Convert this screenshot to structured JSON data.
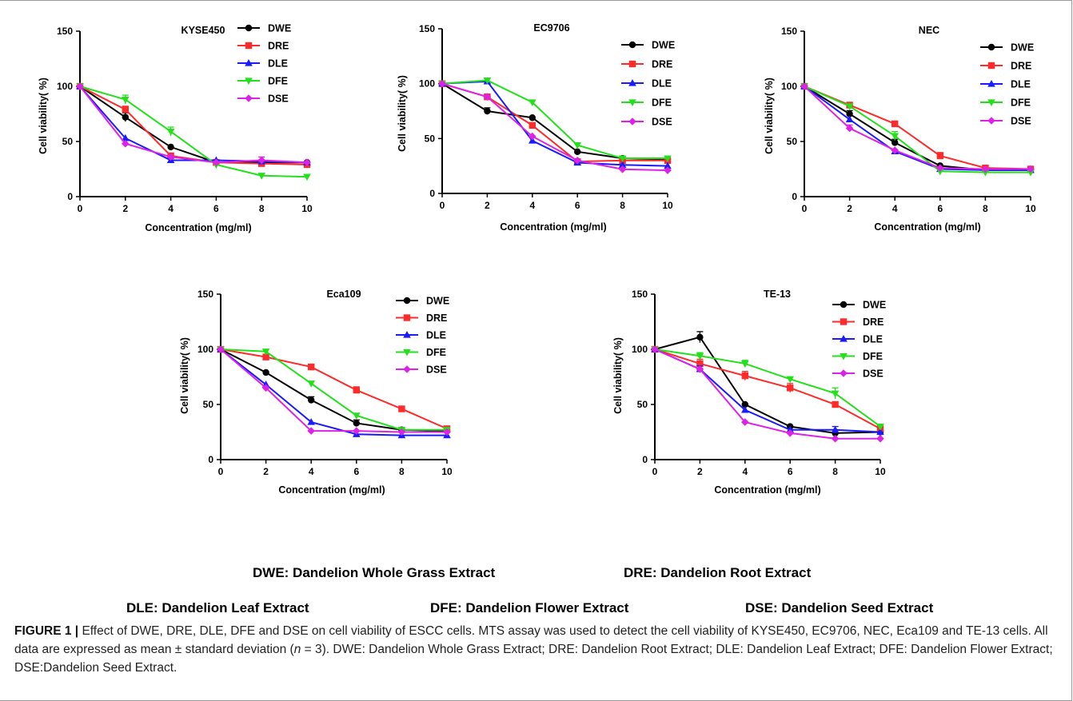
{
  "colors": {
    "DWE": "#000000",
    "DRE": "#ff2a2a",
    "DLE": "#1a1aff",
    "DFE": "#22e01a",
    "DSE": "#dd22e8"
  },
  "chart_data": [
    {
      "type": "line",
      "title": "KYSE450",
      "xlabel": "Concentration (mg/ml)",
      "ylabel": "Cell viability( %)",
      "x": [
        0,
        2,
        4,
        6,
        8,
        10
      ],
      "xlim": [
        0,
        10
      ],
      "ylim": [
        0,
        150
      ],
      "xticks": [
        "0",
        "2",
        "4",
        "6",
        "8",
        "10"
      ],
      "yticks": [
        "0",
        "50",
        "100",
        "150"
      ],
      "series": [
        {
          "name": "DWE",
          "values": [
            100,
            72,
            45,
            31,
            31,
            31
          ],
          "err": [
            0,
            4,
            0,
            0,
            0,
            0
          ]
        },
        {
          "name": "DRE",
          "values": [
            100,
            79,
            37,
            31,
            30,
            29
          ],
          "err": [
            0,
            3,
            0,
            0,
            0,
            0
          ]
        },
        {
          "name": "DLE",
          "values": [
            100,
            53,
            33,
            33,
            32,
            31
          ],
          "err": [
            0,
            0,
            0,
            0,
            0,
            0
          ]
        },
        {
          "name": "DFE",
          "values": [
            100,
            88,
            59,
            29,
            19,
            18
          ],
          "err": [
            0,
            4,
            4,
            0,
            0,
            0
          ]
        },
        {
          "name": "DSE",
          "values": [
            100,
            48,
            36,
            31,
            33,
            31
          ],
          "err": [
            0,
            0,
            0,
            0,
            3,
            0
          ]
        }
      ]
    },
    {
      "type": "line",
      "title": "EC9706",
      "xlabel": "Concentration (mg/ml)",
      "ylabel": "Cell viability( %)",
      "x": [
        0,
        2,
        4,
        6,
        8,
        10
      ],
      "xlim": [
        0,
        10
      ],
      "ylim": [
        0,
        150
      ],
      "xticks": [
        "0",
        "2",
        "4",
        "6",
        "8",
        "10"
      ],
      "yticks": [
        "0",
        "50",
        "100",
        "150"
      ],
      "series": [
        {
          "name": "DWE",
          "values": [
            100,
            75,
            69,
            38,
            32,
            31
          ],
          "err": [
            0,
            3,
            0,
            0,
            0,
            0
          ]
        },
        {
          "name": "DRE",
          "values": [
            100,
            88,
            62,
            29,
            30,
            30
          ],
          "err": [
            0,
            0,
            0,
            0,
            0,
            0
          ]
        },
        {
          "name": "DLE",
          "values": [
            100,
            102,
            48,
            28,
            26,
            25
          ],
          "err": [
            0,
            0,
            0,
            0,
            0,
            0
          ]
        },
        {
          "name": "DFE",
          "values": [
            100,
            103,
            83,
            44,
            32,
            32
          ],
          "err": [
            0,
            0,
            0,
            0,
            0,
            0
          ]
        },
        {
          "name": "DSE",
          "values": [
            100,
            88,
            52,
            30,
            22,
            21
          ],
          "err": [
            0,
            0,
            0,
            0,
            0,
            0
          ]
        }
      ]
    },
    {
      "type": "line",
      "title": "NEC",
      "xlabel": "Concentration (mg/ml)",
      "ylabel": "Cell viability( %)",
      "x": [
        0,
        2,
        4,
        6,
        8,
        10
      ],
      "xlim": [
        0,
        10
      ],
      "ylim": [
        0,
        150
      ],
      "xticks": [
        "0",
        "2",
        "4",
        "6",
        "8",
        "10"
      ],
      "yticks": [
        "0",
        "50",
        "100",
        "150"
      ],
      "series": [
        {
          "name": "DWE",
          "values": [
            100,
            75,
            49,
            28,
            24,
            24
          ],
          "err": [
            0,
            3,
            3,
            0,
            0,
            0
          ]
        },
        {
          "name": "DRE",
          "values": [
            100,
            83,
            66,
            37,
            26,
            25
          ],
          "err": [
            0,
            0,
            0,
            3,
            0,
            0
          ]
        },
        {
          "name": "DLE",
          "values": [
            100,
            70,
            41,
            25,
            24,
            24
          ],
          "err": [
            0,
            0,
            0,
            0,
            0,
            0
          ]
        },
        {
          "name": "DFE",
          "values": [
            100,
            82,
            55,
            23,
            22,
            22
          ],
          "err": [
            0,
            0,
            4,
            0,
            0,
            0
          ]
        },
        {
          "name": "DSE",
          "values": [
            100,
            62,
            42,
            26,
            25,
            25
          ],
          "err": [
            0,
            3,
            0,
            0,
            0,
            0
          ]
        }
      ]
    },
    {
      "type": "line",
      "title": "Eca109",
      "xlabel": "Concentration (mg/ml)",
      "ylabel": "Cell viability( %)",
      "x": [
        0,
        2,
        4,
        6,
        8,
        10
      ],
      "xlim": [
        0,
        10
      ],
      "ylim": [
        0,
        150
      ],
      "xticks": [
        "0",
        "2",
        "4",
        "6",
        "8",
        "10"
      ],
      "yticks": [
        "0",
        "50",
        "100",
        "150"
      ],
      "series": [
        {
          "name": "DWE",
          "values": [
            100,
            79,
            54,
            33,
            27,
            26
          ],
          "err": [
            0,
            0,
            3,
            3,
            0,
            0
          ]
        },
        {
          "name": "DRE",
          "values": [
            100,
            93,
            84,
            63,
            46,
            28
          ],
          "err": [
            0,
            0,
            0,
            3,
            0,
            0
          ]
        },
        {
          "name": "DLE",
          "values": [
            100,
            68,
            34,
            23,
            22,
            22
          ],
          "err": [
            0,
            0,
            0,
            0,
            0,
            0
          ]
        },
        {
          "name": "DFE",
          "values": [
            100,
            98,
            69,
            40,
            27,
            27
          ],
          "err": [
            0,
            0,
            0,
            0,
            0,
            0
          ]
        },
        {
          "name": "DSE",
          "values": [
            100,
            65,
            26,
            26,
            25,
            25
          ],
          "err": [
            0,
            0,
            0,
            0,
            0,
            0
          ]
        }
      ]
    },
    {
      "type": "line",
      "title": "TE-13",
      "xlabel": "Concentration (mg/ml)",
      "ylabel": "Cell viability( %)",
      "x": [
        0,
        2,
        4,
        6,
        8,
        10
      ],
      "xlim": [
        0,
        10
      ],
      "ylim": [
        0,
        150
      ],
      "xticks": [
        "0",
        "2",
        "4",
        "6",
        "8",
        "10"
      ],
      "yticks": [
        "0",
        "50",
        "100",
        "150"
      ],
      "series": [
        {
          "name": "DWE",
          "values": [
            100,
            111,
            50,
            30,
            24,
            25
          ],
          "err": [
            0,
            5,
            0,
            0,
            0,
            0
          ]
        },
        {
          "name": "DRE",
          "values": [
            100,
            87,
            76,
            65,
            50,
            28
          ],
          "err": [
            0,
            4,
            4,
            4,
            0,
            0
          ]
        },
        {
          "name": "DLE",
          "values": [
            100,
            82,
            45,
            27,
            27,
            25
          ],
          "err": [
            0,
            3,
            0,
            0,
            3,
            0
          ]
        },
        {
          "name": "DFE",
          "values": [
            100,
            94,
            87,
            73,
            60,
            30
          ],
          "err": [
            0,
            3,
            3,
            0,
            5,
            0
          ]
        },
        {
          "name": "DSE",
          "values": [
            100,
            82,
            34,
            24,
            19,
            19
          ],
          "err": [
            0,
            0,
            0,
            0,
            0,
            0
          ]
        }
      ]
    }
  ],
  "abbreviations": {
    "dwe": "DWE: Dandelion Whole Grass Extract",
    "dre": "DRE: Dandelion Root Extract",
    "dle": "DLE: Dandelion Leaf Extract",
    "dfe": "DFE: Dandelion Flower Extract",
    "dse": "DSE: Dandelion Seed Extract"
  },
  "caption": {
    "label": "FIGURE 1 |",
    "text_1": " Effect of DWE, DRE, DLE, DFE and DSE on cell viability of ESCC cells. MTS assay was used to detect the cell viability of KYSE450, EC9706, NEC, Eca109 and TE-13 cells. All data are expressed as mean ± standard deviation (",
    "n": "n",
    "text_2": " = 3). DWE: Dandelion Whole Grass Extract; DRE: Dandelion Root Extract; DLE: Dandelion Leaf Extract; DFE: Dandelion Flower Extract; DSE:Dandelion Seed Extract."
  }
}
